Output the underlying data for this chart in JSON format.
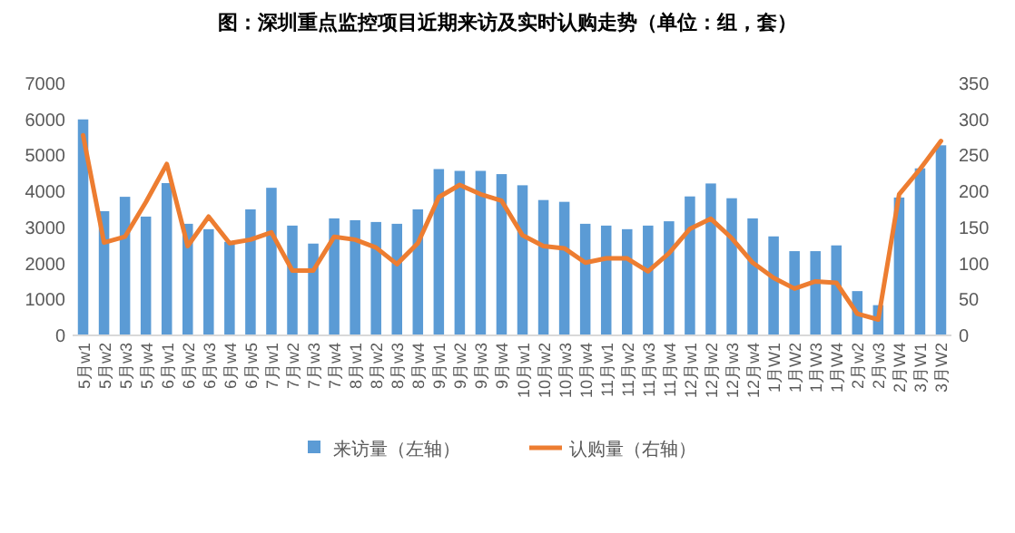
{
  "chart_data": {
    "type": "bar",
    "title": "图：深圳重点监控项目近期来访及实时认购走势（单位：组，套）",
    "categories": [
      "5月w1",
      "5月w2",
      "5月w3",
      "5月w4",
      "6月w1",
      "6月w2",
      "6月w3",
      "6月w4",
      "6月w5",
      "7月w1",
      "7月w2",
      "7月w3",
      "7月w4",
      "8月w1",
      "8月w2",
      "8月w3",
      "8月w4",
      "9月w1",
      "9月w2",
      "9月w3",
      "9月w4",
      "10月w1",
      "10月w2",
      "10月w3",
      "10月w4",
      "11月w1",
      "11月w2",
      "11月w3",
      "11月w4",
      "12月w1",
      "12月w2",
      "12月w3",
      "12月w4",
      "1月W1",
      "1月W2",
      "1月W3",
      "1月W4",
      "2月w2",
      "2月w3",
      "2月W4",
      "3月W1",
      "3月W2"
    ],
    "series": [
      {
        "name": "来访量（左轴）",
        "type": "bar",
        "color": "#5b9bd5",
        "values": [
          6000,
          3450,
          3850,
          3300,
          4230,
          3100,
          2950,
          2600,
          3500,
          4100,
          3050,
          2550,
          3250,
          3200,
          3150,
          3100,
          3500,
          4620,
          4570,
          4570,
          4480,
          4170,
          3760,
          3710,
          3100,
          3050,
          2950,
          3050,
          3170,
          3860,
          4220,
          3810,
          3250,
          2750,
          2340,
          2340,
          2500,
          1230,
          840,
          3830,
          4640,
          5280
        ]
      },
      {
        "name": "认购量（右轴）",
        "type": "line",
        "axis": "y2",
        "color": "#ed7d31",
        "values": [
          278,
          129,
          137,
          185,
          238,
          124,
          165,
          128,
          133,
          143,
          90,
          90,
          137,
          133,
          122,
          99,
          128,
          192,
          209,
          196,
          187,
          139,
          124,
          121,
          101,
          107,
          107,
          89,
          114,
          148,
          162,
          135,
          101,
          80,
          65,
          75,
          73,
          30,
          22,
          196,
          231,
          270
        ]
      }
    ],
    "ylim": [
      0,
      7000
    ],
    "yticks": [
      0,
      1000,
      2000,
      3000,
      4000,
      5000,
      6000,
      7000
    ],
    "y2lim": [
      0,
      350
    ],
    "y2ticks": [
      0,
      50,
      100,
      150,
      200,
      250,
      300,
      350
    ],
    "legend": "bottom",
    "marker": "none",
    "grid": false
  }
}
